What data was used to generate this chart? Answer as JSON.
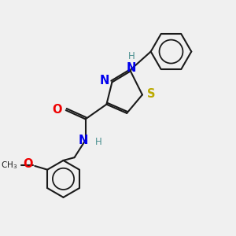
{
  "bg_color": "#f0f0f0",
  "bond_color": "#1a1a1a",
  "N_color": "#0000ee",
  "S_color": "#bbaa00",
  "O_color": "#ee0000",
  "NH_color": "#4a9090",
  "lw": 1.5,
  "dbo": 0.045,
  "xlim": [
    0.0,
    6.0
  ],
  "ylim": [
    -0.3,
    5.8
  ]
}
